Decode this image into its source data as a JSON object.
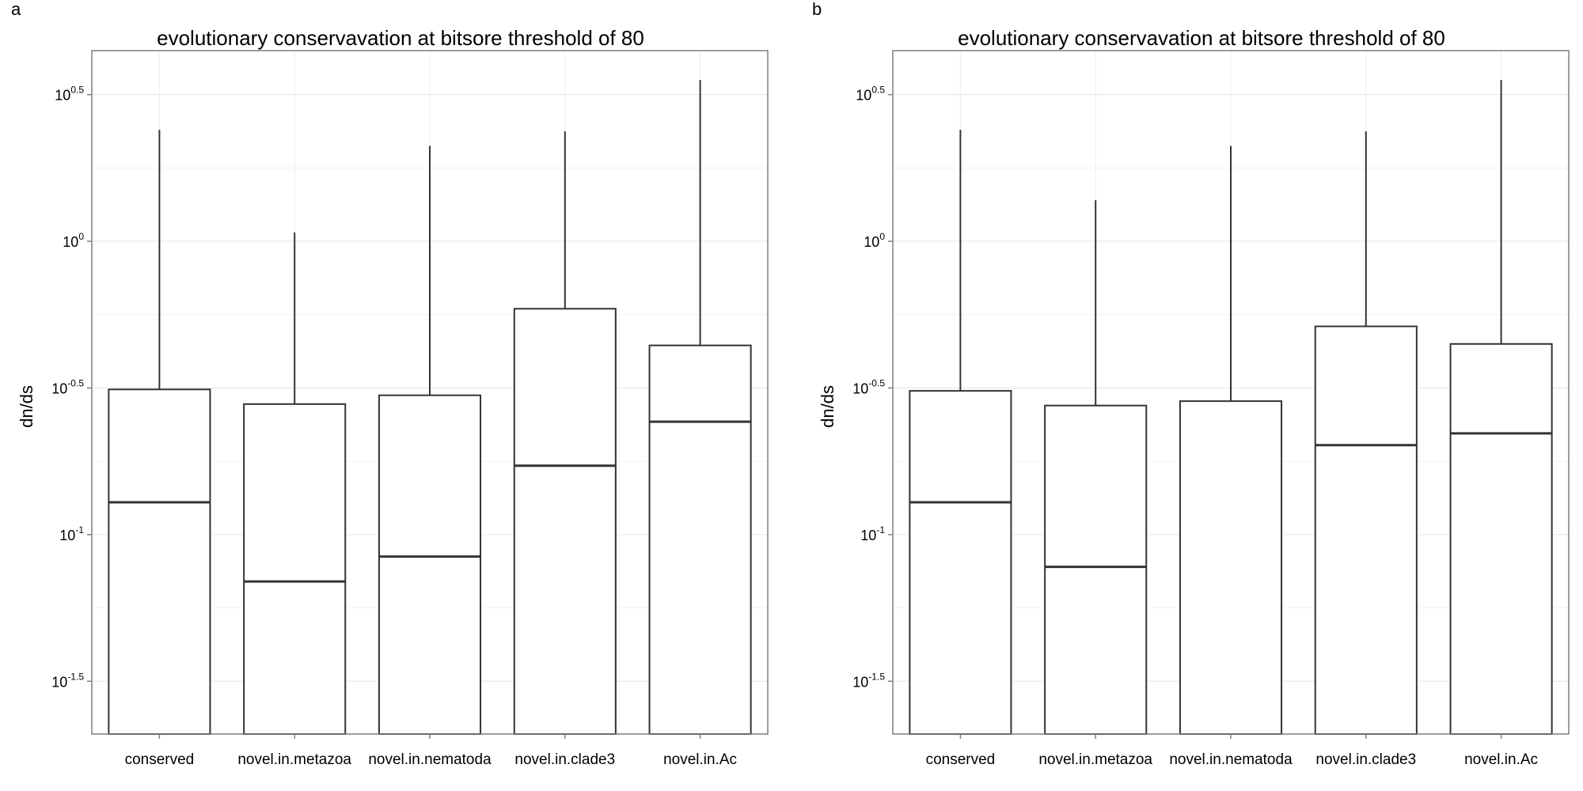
{
  "chart_data": [
    {
      "panel_label": "a",
      "type": "box",
      "title": "evolutionary conservavation at bitsore threshold of 80",
      "xlabel": "",
      "ylabel": "dn/ds",
      "y_scale": "log10",
      "ylim_log10": [
        -1.68,
        0.65
      ],
      "y_ticks": [
        {
          "log10": 0.5,
          "base": "10",
          "exp": "0.5"
        },
        {
          "log10": 0,
          "base": "10",
          "exp": "0"
        },
        {
          "log10": -0.5,
          "base": "10",
          "exp": "-0.5"
        },
        {
          "log10": -1,
          "base": "10",
          "exp": "-1"
        },
        {
          "log10": -1.5,
          "base": "10",
          "exp": "-1.5"
        }
      ],
      "grid": true,
      "categories": [
        "conserved",
        "novel.in.metazoa",
        "novel.in.nematoda",
        "novel.in.clade3",
        "novel.in.Ac"
      ],
      "boxes": [
        {
          "q1": -1.68,
          "median": -0.89,
          "q3": -0.505,
          "whisker_high": 0.38
        },
        {
          "q1": -1.68,
          "median": -1.16,
          "q3": -0.555,
          "whisker_high": 0.03
        },
        {
          "q1": -1.68,
          "median": -1.075,
          "q3": -0.525,
          "whisker_high": 0.325
        },
        {
          "q1": -1.68,
          "median": -0.765,
          "q3": -0.23,
          "whisker_high": 0.375
        },
        {
          "q1": -1.68,
          "median": -0.615,
          "q3": -0.355,
          "whisker_high": 0.55
        }
      ]
    },
    {
      "panel_label": "b",
      "type": "box",
      "title": "evolutionary conservavation at bitsore threshold of 80",
      "xlabel": "",
      "ylabel": "dn/ds",
      "y_scale": "log10",
      "ylim_log10": [
        -1.68,
        0.65
      ],
      "y_ticks": [
        {
          "log10": 0.5,
          "base": "10",
          "exp": "0.5"
        },
        {
          "log10": 0,
          "base": "10",
          "exp": "0"
        },
        {
          "log10": -0.5,
          "base": "10",
          "exp": "-0.5"
        },
        {
          "log10": -1,
          "base": "10",
          "exp": "-1"
        },
        {
          "log10": -1.5,
          "base": "10",
          "exp": "-1.5"
        }
      ],
      "grid": true,
      "categories": [
        "conserved",
        "novel.in.metazoa",
        "novel.in.nematoda",
        "novel.in.clade3",
        "novel.in.Ac"
      ],
      "boxes": [
        {
          "q1": -1.68,
          "median": -0.89,
          "q3": -0.51,
          "whisker_high": 0.38
        },
        {
          "q1": -1.68,
          "median": -1.11,
          "q3": -0.56,
          "whisker_high": 0.14
        },
        {
          "q1": -1.68,
          "median": null,
          "q3": -0.545,
          "whisker_high": 0.325
        },
        {
          "q1": -1.68,
          "median": -0.695,
          "q3": -0.29,
          "whisker_high": 0.375
        },
        {
          "q1": -1.68,
          "median": -0.655,
          "q3": -0.35,
          "whisker_high": 0.55
        }
      ]
    }
  ]
}
